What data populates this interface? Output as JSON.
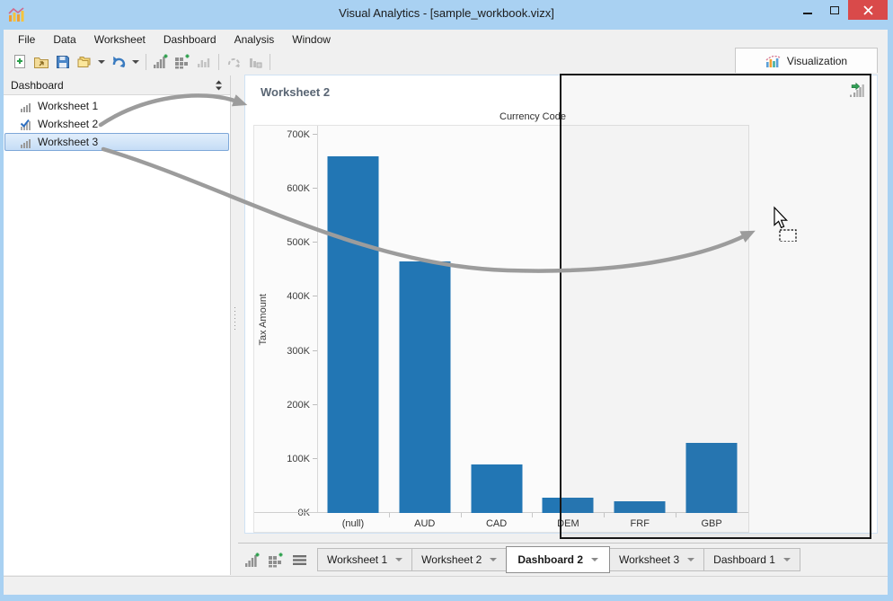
{
  "window": {
    "title": "Visual Analytics - [sample_workbook.vizx]"
  },
  "menus": [
    "File",
    "Data",
    "Worksheet",
    "Dashboard",
    "Analysis",
    "Window"
  ],
  "toolbar": {
    "buttons": [
      "new-workbook",
      "open-workbook",
      "save-workbook",
      "duplicate",
      "refresh-data",
      "add-worksheet",
      "add-dashboard",
      "worksheet-view",
      "rotate-disabled",
      "chart-disabled"
    ]
  },
  "visualization_tab": {
    "label": "Visualization"
  },
  "sidebar": {
    "header": "Dashboard",
    "items": [
      {
        "label": "Worksheet 1",
        "checked": false,
        "selected": false
      },
      {
        "label": "Worksheet 2",
        "checked": true,
        "selected": false
      },
      {
        "label": "Worksheet 3",
        "checked": false,
        "selected": true
      }
    ]
  },
  "worksheet_panel": {
    "title": "Worksheet 2"
  },
  "chart_data": {
    "type": "bar",
    "title": "Worksheet 2",
    "column_header": "Currency Code",
    "ylabel": "Tax Amount",
    "categories": [
      "(null)",
      "AUD",
      "CAD",
      "DEM",
      "FRF",
      "GBP"
    ],
    "values": [
      660000,
      466000,
      90000,
      29000,
      22000,
      129000
    ],
    "yticks": [
      {
        "label": "0K",
        "value": 0
      },
      {
        "label": "100K",
        "value": 100000
      },
      {
        "label": "200K",
        "value": 200000
      },
      {
        "label": "300K",
        "value": 300000
      },
      {
        "label": "400K",
        "value": 400000
      },
      {
        "label": "500K",
        "value": 500000
      },
      {
        "label": "600K",
        "value": 600000
      },
      {
        "label": "700K",
        "value": 700000
      }
    ],
    "ylim": [
      0,
      720000
    ],
    "grid": false,
    "bar_color": "#2276b4"
  },
  "bottom_tabs": {
    "tabs": [
      {
        "label": "Worksheet 1",
        "active": false
      },
      {
        "label": "Worksheet 2",
        "active": false
      },
      {
        "label": "Dashboard 2",
        "active": true
      },
      {
        "label": "Worksheet 3",
        "active": false
      },
      {
        "label": "Dashboard 1",
        "active": false
      }
    ]
  },
  "colors": {
    "titlebar": "#a9d1f2",
    "close_button": "#d94a4a",
    "bar": "#2276b4",
    "selection_border": "#7da7d8",
    "selection_fill": "#c5ddf6"
  }
}
